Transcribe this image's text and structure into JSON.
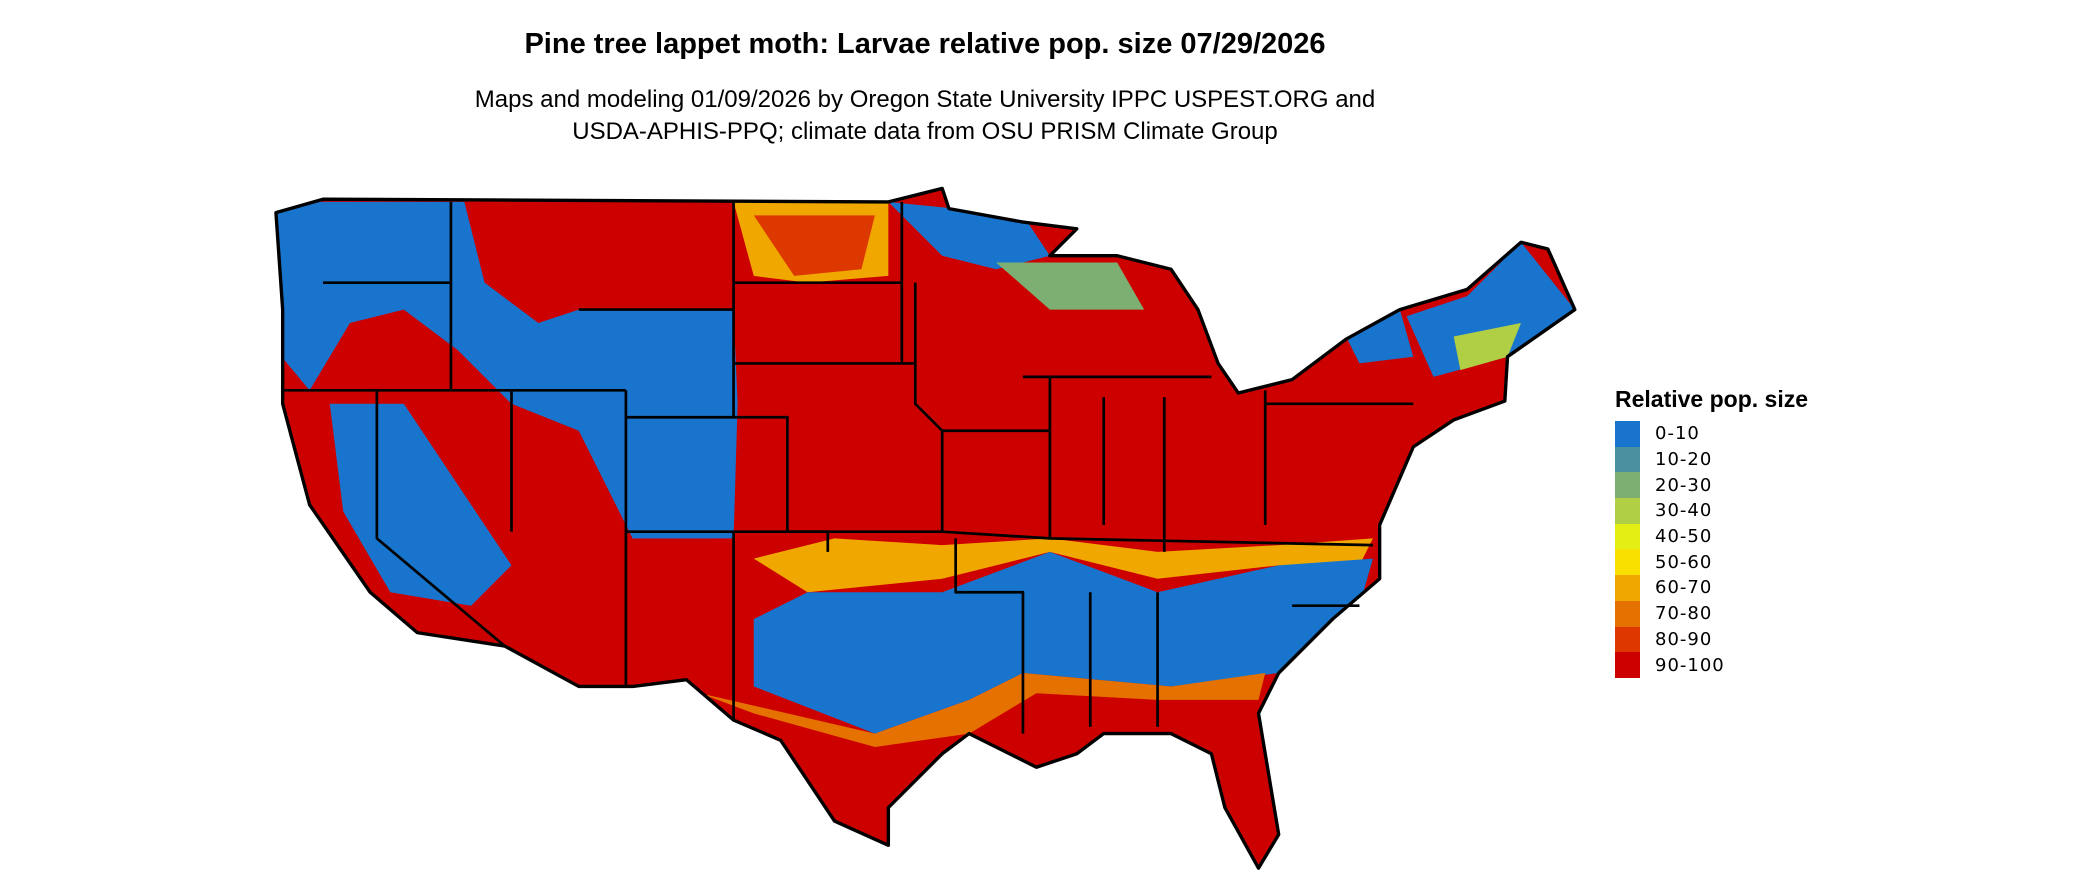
{
  "title": "Pine tree lappet moth: Larvae relative pop. size 07/29/2026",
  "subtitle_line1": "Maps and modeling 01/09/2026 by Oregon State University IPPC USPEST.ORG and",
  "subtitle_line2": "USDA-APHIS-PPQ; climate data from OSU PRISM Climate Group",
  "legend": {
    "title": "Relative pop. size",
    "items": [
      {
        "label": "0-10",
        "color": "#1874CD"
      },
      {
        "label": "10-20",
        "color": "#4A90A0"
      },
      {
        "label": "20-30",
        "color": "#7DAF72"
      },
      {
        "label": "30-40",
        "color": "#B0CF45"
      },
      {
        "label": "40-50",
        "color": "#E3EE14"
      },
      {
        "label": "50-60",
        "color": "#FAE000"
      },
      {
        "label": "60-70",
        "color": "#F0A800"
      },
      {
        "label": "70-80",
        "color": "#E57200"
      },
      {
        "label": "80-90",
        "color": "#DC3800"
      },
      {
        "label": "90-100",
        "color": "#CD0000"
      }
    ]
  },
  "map": {
    "region": "Contiguous United States",
    "dominant_class": "90-100"
  }
}
